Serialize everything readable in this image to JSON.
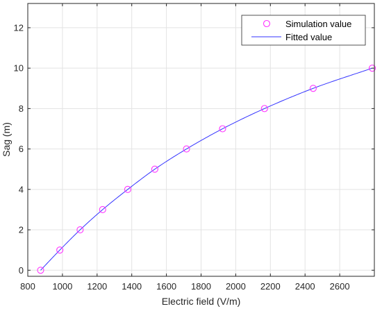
{
  "chart_data": {
    "type": "scatter",
    "title": "",
    "xlabel": "Electric field (V/m)",
    "ylabel": "Sag (m)",
    "xlim": [
      800,
      2800
    ],
    "ylim": [
      -0.3,
      13.2
    ],
    "xticks": [
      800,
      1000,
      1200,
      1400,
      1600,
      1800,
      2000,
      2200,
      2400,
      2600
    ],
    "yticks": [
      0,
      2,
      4,
      6,
      8,
      10,
      12
    ],
    "grid": true,
    "legend_position": "top-right",
    "series": [
      {
        "name": "Simulation value",
        "kind": "markers",
        "marker": "circle",
        "color": "#ff33ff",
        "x": [
          874,
          985,
          1102,
          1232,
          1377,
          1533,
          1716,
          1924,
          2166,
          2447,
          2788
        ],
        "y": [
          0,
          1,
          2,
          3,
          4,
          5,
          6,
          7,
          8,
          9,
          10
        ]
      },
      {
        "name": "Fitted value",
        "kind": "line",
        "color": "#3333ff",
        "x": [
          874,
          985,
          1102,
          1232,
          1377,
          1533,
          1716,
          1924,
          2166,
          2447,
          2788
        ],
        "y": [
          0,
          1,
          2,
          3,
          4,
          5,
          6,
          7,
          8,
          9,
          10
        ]
      }
    ]
  }
}
